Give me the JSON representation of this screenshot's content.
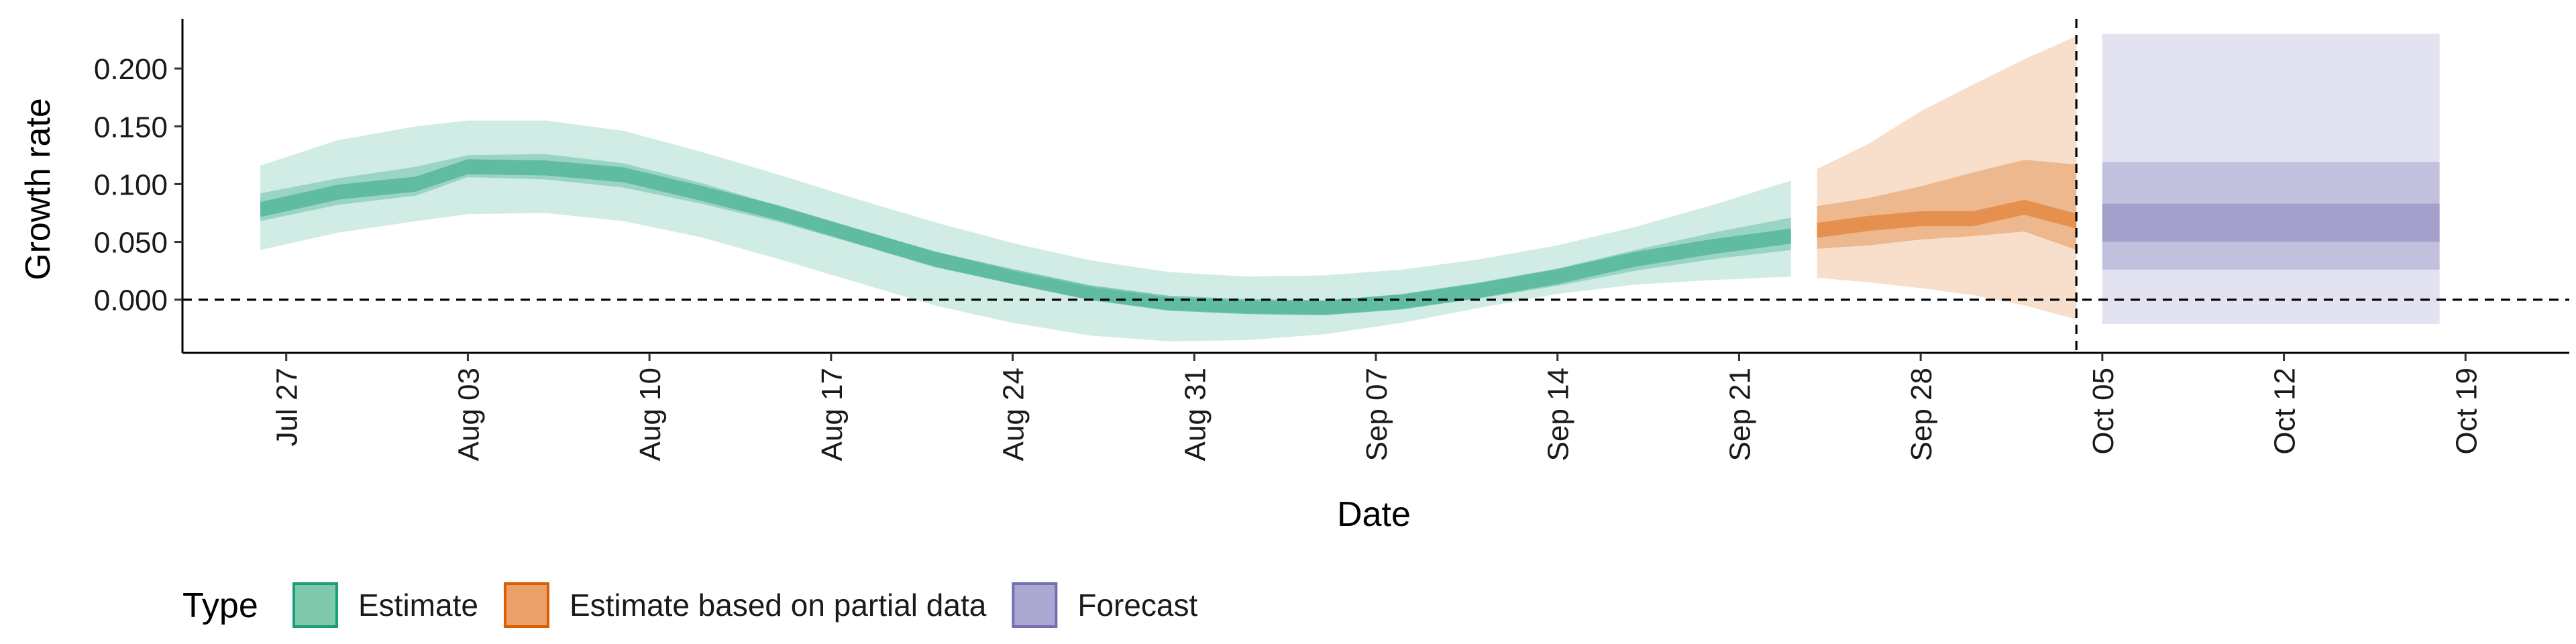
{
  "chart_data": {
    "type": "area",
    "xlabel": "Date",
    "ylabel": "Growth rate",
    "ylim": [
      -0.046,
      0.243
    ],
    "xlim": [
      "2020-07-23",
      "2020-10-23"
    ],
    "x_ticks": [
      {
        "date": "2020-07-27",
        "label": "Jul 27"
      },
      {
        "date": "2020-08-03",
        "label": "Aug 03"
      },
      {
        "date": "2020-08-10",
        "label": "Aug 10"
      },
      {
        "date": "2020-08-17",
        "label": "Aug 17"
      },
      {
        "date": "2020-08-24",
        "label": "Aug 24"
      },
      {
        "date": "2020-08-31",
        "label": "Aug 31"
      },
      {
        "date": "2020-09-07",
        "label": "Sep 07"
      },
      {
        "date": "2020-09-14",
        "label": "Sep 14"
      },
      {
        "date": "2020-09-21",
        "label": "Sep 21"
      },
      {
        "date": "2020-09-28",
        "label": "Sep 28"
      },
      {
        "date": "2020-10-05",
        "label": "Oct 05"
      },
      {
        "date": "2020-10-12",
        "label": "Oct 12"
      },
      {
        "date": "2020-10-19",
        "label": "Oct 19"
      }
    ],
    "y_ticks": [
      {
        "value": 0.0,
        "label": "0.000"
      },
      {
        "value": 0.05,
        "label": "0.050"
      },
      {
        "value": 0.1,
        "label": "0.100"
      },
      {
        "value": 0.15,
        "label": "0.150"
      },
      {
        "value": 0.2,
        "label": "0.200"
      }
    ],
    "hline": 0.0,
    "vline": "2020-10-04",
    "grid": false,
    "legend": {
      "position": "bottom-left",
      "title": "Type",
      "items": [
        {
          "label": "Estimate",
          "color": "#7fc8ab",
          "border": "#1b9e77"
        },
        {
          "label": "Estimate based on partial data",
          "color": "#eca06a",
          "border": "#d95f02"
        },
        {
          "label": "Forecast",
          "color": "#aaa8d0",
          "border": "#7570b3"
        }
      ]
    },
    "series": [
      {
        "name": "Estimate",
        "color": "#1b9e77",
        "dates": [
          "2020-07-26",
          "2020-07-29",
          "2020-08-01",
          "2020-08-03",
          "2020-08-06",
          "2020-08-09",
          "2020-08-12",
          "2020-08-15",
          "2020-08-18",
          "2020-08-21",
          "2020-08-24",
          "2020-08-27",
          "2020-08-30",
          "2020-09-02",
          "2020-09-05",
          "2020-09-08",
          "2020-09-11",
          "2020-09-14",
          "2020-09-17",
          "2020-09-20",
          "2020-09-23"
        ],
        "upper90": [
          0.116,
          0.138,
          0.15,
          0.155,
          0.155,
          0.146,
          0.128,
          0.108,
          0.087,
          0.067,
          0.049,
          0.034,
          0.024,
          0.02,
          0.021,
          0.026,
          0.035,
          0.047,
          0.063,
          0.082,
          0.103
        ],
        "upper50": [
          0.092,
          0.105,
          0.115,
          0.125,
          0.126,
          0.118,
          0.101,
          0.081,
          0.061,
          0.042,
          0.025,
          0.011,
          0.002,
          -0.001,
          -0.001,
          0.005,
          0.015,
          0.027,
          0.043,
          0.058,
          0.071
        ],
        "median": [
          0.078,
          0.093,
          0.1,
          0.115,
          0.114,
          0.108,
          0.092,
          0.075,
          0.055,
          0.035,
          0.02,
          0.006,
          -0.003,
          -0.006,
          -0.007,
          -0.002,
          0.008,
          0.02,
          0.035,
          0.046,
          0.055
        ],
        "lower50": [
          0.068,
          0.082,
          0.09,
          0.106,
          0.104,
          0.097,
          0.083,
          0.067,
          0.048,
          0.028,
          0.014,
          0.0,
          -0.009,
          -0.012,
          -0.013,
          -0.008,
          0.001,
          0.012,
          0.025,
          0.035,
          0.043
        ],
        "lower90": [
          0.043,
          0.058,
          0.068,
          0.074,
          0.075,
          0.068,
          0.054,
          0.035,
          0.015,
          -0.005,
          -0.02,
          -0.031,
          -0.036,
          -0.035,
          -0.03,
          -0.02,
          -0.007,
          0.005,
          0.013,
          0.017,
          0.02
        ]
      },
      {
        "name": "Estimate based on partial data",
        "color": "#d95f02",
        "dates": [
          "2020-09-24",
          "2020-09-26",
          "2020-09-28",
          "2020-09-30",
          "2020-10-02",
          "2020-10-04"
        ],
        "upper90": [
          0.113,
          0.135,
          0.163,
          0.186,
          0.208,
          0.228
        ],
        "upper50": [
          0.081,
          0.088,
          0.098,
          0.11,
          0.121,
          0.117
        ],
        "median": [
          0.06,
          0.066,
          0.07,
          0.07,
          0.08,
          0.068
        ],
        "lower50": [
          0.044,
          0.047,
          0.052,
          0.055,
          0.059,
          0.043
        ],
        "lower90": [
          0.019,
          0.015,
          0.01,
          0.004,
          -0.005,
          -0.017
        ]
      },
      {
        "name": "Forecast",
        "color": "#7570b3",
        "dates": [
          "2020-10-05",
          "2020-10-18"
        ],
        "upper90": [
          0.23,
          0.23
        ],
        "upper50": [
          0.119,
          0.119
        ],
        "upper20": [
          0.083,
          0.083
        ],
        "lower20": [
          0.05,
          0.05
        ],
        "lower50": [
          0.026,
          0.026
        ],
        "lower90": [
          -0.021,
          -0.021
        ]
      }
    ]
  }
}
